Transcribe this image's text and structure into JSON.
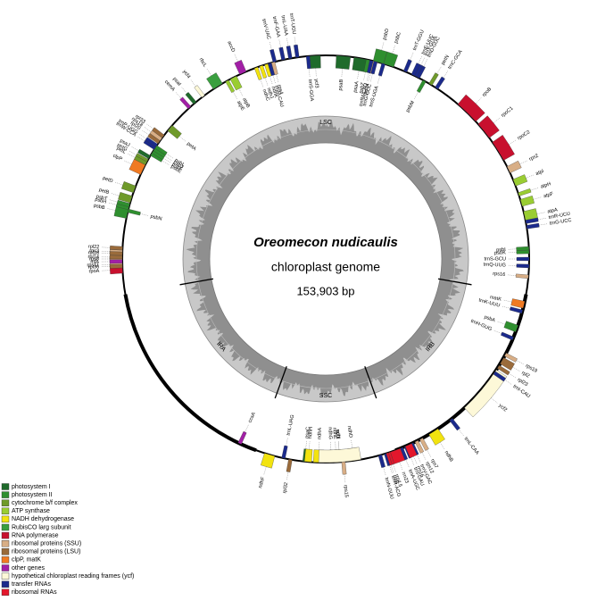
{
  "title": "Oreomecon nudicaulis",
  "subtitle": "chloroplast genome",
  "size": "153,903 bp",
  "regions": {
    "lsc": "LSC",
    "irb": "IRB",
    "ssc": "SSC",
    "ira": "IRA"
  },
  "groups": [
    {
      "label": "photosystem I",
      "color": "#1f6b2b",
      "genes": [
        "psaA",
        "psaB",
        "psaC",
        "psaI",
        "psaJ",
        "ycf3"
      ]
    },
    {
      "label": "photosystem II",
      "color": "#2f8f2f",
      "genes": [
        "psbA",
        "psbB",
        "psbC",
        "psbD",
        "psbE",
        "psbF",
        "psbH",
        "psbI",
        "psbJ",
        "psbK",
        "psbL",
        "psbM",
        "psbN",
        "psbT",
        "psbZ"
      ]
    },
    {
      "label": "cytochrome b/f complex",
      "color": "#6f9a2a",
      "genes": [
        "petA",
        "petB",
        "petD",
        "petG",
        "petL",
        "petN"
      ]
    },
    {
      "label": "ATP synthase",
      "color": "#9acd32",
      "genes": [
        "atpA",
        "atpB",
        "atpE",
        "atpF",
        "atpH",
        "atpI"
      ]
    },
    {
      "label": "NADH dehydrogenase",
      "color": "#f2e30f",
      "genes": [
        "ndhA",
        "ndhB",
        "ndhC",
        "ndhD",
        "ndhE",
        "ndhF",
        "ndhG",
        "ndhH",
        "ndhI",
        "ndhJ",
        "ndhK"
      ]
    },
    {
      "label": "RubisCO larg subunit",
      "color": "#3a9f3f",
      "genes": [
        "rbcL"
      ]
    },
    {
      "label": "RNA polymerase",
      "color": "#c8102e",
      "genes": [
        "rpoA",
        "rpoB",
        "rpoC1",
        "rpoC2"
      ]
    },
    {
      "label": "ribosomal proteins (SSU)",
      "color": "#d8ae86",
      "genes": [
        "rps2",
        "rps3",
        "rps4",
        "rps7",
        "rps8",
        "rps11",
        "rps12",
        "rps14",
        "rps15",
        "rps16",
        "rps18",
        "rps19"
      ]
    },
    {
      "label": "ribosomal proteins (LSU)",
      "color": "#9a6b3b",
      "genes": [
        "rpl2",
        "rpl14",
        "rpl16",
        "rpl20",
        "rpl22",
        "rpl23",
        "rpl32",
        "rpl33",
        "rpl36"
      ]
    },
    {
      "label": "clpP, matK",
      "color": "#f07a22",
      "genes": [
        "clpP",
        "matK"
      ]
    },
    {
      "label": "other genes",
      "color": "#a21fa6",
      "genes": [
        "accD",
        "ccsA",
        "cemA",
        "infA"
      ]
    },
    {
      "label": "hypothetical chloroplast reading frames (ycf)",
      "color": "#fdf8d8",
      "genes": [
        "ycf1",
        "ycf2",
        "ycf4"
      ]
    },
    {
      "label": "transfer RNAs",
      "color": "#1b2a8c",
      "genes": [
        "trnH-GUG",
        "trnK-UUU",
        "trnQ-UUG",
        "trnS-GCU",
        "trnG-UCC",
        "trnR-UCU",
        "trnC-GCA",
        "trnD-GUC",
        "trnY-GUA",
        "trnE-UUC",
        "trnT-GGU",
        "trnS-UGA",
        "trnG-GCC",
        "trnfM-CAU",
        "trnS-GGA",
        "trnT-UGU",
        "trnL-UAA",
        "trnF-GAA",
        "trnV-UAC",
        "trnM-CAU",
        "trnW-CCA",
        "trnP-UGG",
        "trnI-CAU",
        "trnL-CAA",
        "trnV-GAC",
        "trnI-GAU",
        "trnA-UGC",
        "trnR-ACG",
        "trnN-GUU",
        "trnL-UAG"
      ]
    },
    {
      "label": "ribosomal RNAs",
      "color": "#e3172c",
      "genes": [
        "rrn16",
        "rrn23",
        "rrn4.5",
        "rrn5"
      ]
    }
  ]
}
